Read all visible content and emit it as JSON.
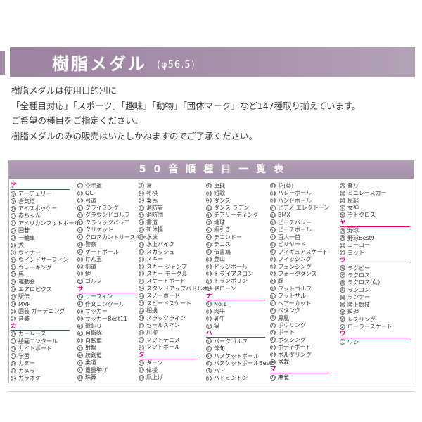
{
  "header": {
    "title": "樹脂メダル",
    "size_label": "(φ56.5)"
  },
  "intro": {
    "lines": [
      "樹脂メダルは使用目的別に",
      "「全種目対応」「スポーツ」「趣味」「動物」「団体マーク」など147種取り揃えています。",
      "ご希望の種目をご指定ください。",
      "樹脂メダルのみの販売はいたしかねますのでご了承ください。"
    ]
  },
  "colors": {
    "accent_purple": "#a28aa6",
    "table_header_purple": "#a995ac",
    "section_pink": "#e5007f"
  },
  "table": {
    "title": "50音順種目一覧表",
    "columns": [
      [
        {
          "s": "ア"
        },
        {
          "n": 8,
          "t": "アーチェリー"
        },
        {
          "n": 9,
          "t": "合気道"
        },
        {
          "n": 10,
          "t": "アイスホッケー"
        },
        {
          "n": 23,
          "t": "赤ちゃん"
        },
        {
          "n": 11,
          "t": "アメリカンフットボール"
        },
        {
          "n": 24,
          "t": "囲碁"
        },
        {
          "n": 25,
          "t": "一輪車"
        },
        {
          "n": 26,
          "t": "犬"
        },
        {
          "n": 1,
          "t": "ウィナー"
        },
        {
          "n": 12,
          "t": "ウインドサーフィン"
        },
        {
          "n": 13,
          "t": "ウォーキング"
        },
        {
          "n": 27,
          "t": "馬"
        },
        {
          "n": 30,
          "t": "運動会"
        },
        {
          "n": 14,
          "t": "エアロビクス"
        },
        {
          "n": 15,
          "t": "駅伝"
        },
        {
          "n": 16,
          "t": "MVP"
        },
        {
          "n": 28,
          "t": "園芸 ガーデニング"
        },
        {
          "n": 29,
          "t": "音楽"
        },
        {
          "s": "カ"
        },
        {
          "n": 15,
          "t": "カーレース"
        },
        {
          "n": 31,
          "t": "絵画コンクール"
        },
        {
          "n": 36,
          "t": "カイトボード"
        },
        {
          "n": 32,
          "t": "学習"
        },
        {
          "n": 16,
          "t": "カヌー"
        },
        {
          "n": 33,
          "t": "カメラ"
        },
        {
          "n": 34,
          "t": "カラオケ"
        }
      ],
      [
        {
          "n": 17,
          "t": "空手道"
        },
        {
          "n": 18,
          "t": "QC"
        },
        {
          "n": 19,
          "t": "弓道"
        },
        {
          "n": 37,
          "t": "クライミング"
        },
        {
          "n": 20,
          "t": "グラウンドゴルフ"
        },
        {
          "n": 47,
          "t": "クラシックバレエ"
        },
        {
          "n": 38,
          "t": "クリケット"
        },
        {
          "n": 33,
          "t": "クロスカントリースキー"
        },
        {
          "n": 35,
          "t": "警察"
        },
        {
          "n": 21,
          "t": "ゲートボール"
        },
        {
          "n": 39,
          "t": "けん玉"
        },
        {
          "n": 22,
          "t": "剣道"
        },
        {
          "n": 40,
          "t": "鯉"
        },
        {
          "n": 23,
          "t": "ゴルフ"
        },
        {
          "s": "サ"
        },
        {
          "n": 24,
          "t": "サーフィン"
        },
        {
          "n": 41,
          "t": "作文コンクール"
        },
        {
          "n": 25,
          "t": "サッカー"
        },
        {
          "n": 26,
          "t": "サッカーBest11"
        },
        {
          "n": 42,
          "t": "磯釣り"
        },
        {
          "n": 43,
          "t": "自衛隊"
        },
        {
          "n": 28,
          "t": "自転車"
        },
        {
          "n": 29,
          "t": "射撃"
        },
        {
          "n": 44,
          "t": "銃剣道"
        },
        {
          "n": 30,
          "t": "柔道"
        },
        {
          "n": 31,
          "t": "重量挙げ"
        },
        {
          "n": 45,
          "t": "珠算"
        }
      ],
      [
        {
          "n": 2,
          "t": "賞"
        },
        {
          "n": 46,
          "t": "将棋"
        },
        {
          "n": 34,
          "t": "乗馬"
        },
        {
          "n": 13,
          "t": "消防署"
        },
        {
          "n": 15,
          "t": "消防団"
        },
        {
          "n": 48,
          "t": "書道"
        },
        {
          "n": 49,
          "t": "新体操"
        },
        {
          "n": 32,
          "t": "水泳"
        },
        {
          "n": 50,
          "t": "水上バイク"
        },
        {
          "n": 51,
          "t": "スカッシュ"
        },
        {
          "n": 33,
          "t": "スキー"
        },
        {
          "n": 52,
          "t": "スキー ジャンプ"
        },
        {
          "n": 53,
          "t": "スキー モーグル"
        },
        {
          "n": 41,
          "t": "スケートボード"
        },
        {
          "n": 54,
          "t": "スタンドアップパドルボード"
        },
        {
          "n": 40,
          "t": "スノーボード"
        },
        {
          "n": 55,
          "t": "スピードスケート"
        },
        {
          "n": 44,
          "t": "相撲"
        },
        {
          "n": 56,
          "t": "スラックライン"
        },
        {
          "n": 57,
          "t": "セールスマン"
        },
        {
          "n": 58,
          "t": "川柳"
        },
        {
          "n": 42,
          "t": "ソフトテニス"
        },
        {
          "n": 43,
          "t": "ソフトボール"
        },
        {
          "s": "タ"
        },
        {
          "n": 59,
          "t": "ダーツ"
        },
        {
          "n": 45,
          "t": "体操"
        },
        {
          "n": 60,
          "t": "凧上げ"
        }
      ],
      [
        {
          "n": 47,
          "t": "卓球"
        },
        {
          "n": 61,
          "t": "短歌"
        },
        {
          "n": 48,
          "t": "ダンス"
        },
        {
          "n": 62,
          "t": "ダンス ラテン"
        },
        {
          "n": 49,
          "t": "チアリーディング"
        },
        {
          "n": 3,
          "t": "地球"
        },
        {
          "n": 50,
          "t": "綱引き"
        },
        {
          "n": 51,
          "t": "テコンドー"
        },
        {
          "n": 52,
          "t": "テニス"
        },
        {
          "n": 63,
          "t": "伝書鳩"
        },
        {
          "n": 53,
          "t": "登山"
        },
        {
          "n": 54,
          "t": "ドッジボール"
        },
        {
          "n": 55,
          "t": "トライアスロン"
        },
        {
          "n": 56,
          "t": "トランポリン"
        },
        {
          "n": 64,
          "t": "ドローン"
        },
        {
          "s": "ナ"
        },
        {
          "n": 65,
          "t": "No.1"
        },
        {
          "n": 66,
          "t": "肉牛"
        },
        {
          "n": 67,
          "t": "乳牛"
        },
        {
          "n": 68,
          "t": "猫"
        },
        {
          "s": "ハ"
        },
        {
          "n": 57,
          "t": "パークゴルフ"
        },
        {
          "n": 69,
          "t": "俳句"
        },
        {
          "n": 58,
          "t": "バスケットボール"
        },
        {
          "n": 59,
          "t": "バスケットボールBest5"
        },
        {
          "n": 4,
          "t": "ハト"
        },
        {
          "n": 60,
          "t": "バドミントン"
        }
      ],
      [
        {
          "n": 31,
          "t": "花(菊)"
        },
        {
          "n": 61,
          "t": "バレーボール"
        },
        {
          "n": 62,
          "t": "ハンドボール"
        },
        {
          "n": 70,
          "t": "ピアノ エレクトーン"
        },
        {
          "n": 27,
          "t": "BMX"
        },
        {
          "n": 63,
          "t": "ビーチバレー"
        },
        {
          "n": 64,
          "t": "ビーチボール"
        },
        {
          "n": 71,
          "t": "百人一首"
        },
        {
          "n": 65,
          "t": "ビリヤード"
        },
        {
          "n": 66,
          "t": "フィギュアスケート"
        },
        {
          "n": 72,
          "t": "フィッシング"
        },
        {
          "n": 67,
          "t": "フェンシング"
        },
        {
          "n": 73,
          "t": "フォークダンス"
        },
        {
          "n": 74,
          "t": "豚"
        },
        {
          "n": 68,
          "t": "フットゴルフ"
        },
        {
          "n": 69,
          "t": "フットサル"
        },
        {
          "n": 75,
          "t": "ヘアーカット"
        },
        {
          "n": 76,
          "t": "ペタンク"
        },
        {
          "n": 5,
          "t": "鳳凰"
        },
        {
          "n": 70,
          "t": "ボウリング"
        },
        {
          "n": 71,
          "t": "ボート"
        },
        {
          "n": 72,
          "t": "ボクシング"
        },
        {
          "n": 73,
          "t": "ボディボード"
        },
        {
          "n": 74,
          "t": "ボルダリング"
        },
        {
          "n": 77,
          "t": "盆栽"
        },
        {
          "s": "マ"
        },
        {
          "n": 78,
          "t": "麻雀"
        }
      ],
      [
        {
          "n": 79,
          "t": "祭り"
        },
        {
          "n": 80,
          "t": "ミニレースカー"
        },
        {
          "n": 81,
          "t": "民謡"
        },
        {
          "n": 6,
          "t": "女神"
        },
        {
          "n": 82,
          "t": "モトクロス"
        },
        {
          "s": "ヤ"
        },
        {
          "n": 75,
          "t": "野球"
        },
        {
          "n": 76,
          "t": "野球Best9"
        },
        {
          "n": 10,
          "t": "ヨーヨー"
        },
        {
          "n": 77,
          "t": "ヨット"
        },
        {
          "s": "ラ"
        },
        {
          "n": 84,
          "t": "ラグビー"
        },
        {
          "n": 85,
          "t": "ラクロス"
        },
        {
          "n": 86,
          "t": "ラクロス(女)"
        },
        {
          "n": 87,
          "t": "ラジコン"
        },
        {
          "n": 88,
          "t": "ランナー"
        },
        {
          "n": 89,
          "t": "陸上競技"
        },
        {
          "n": 90,
          "t": "料理"
        },
        {
          "n": 91,
          "t": "レスリング"
        },
        {
          "n": 92,
          "t": "ローラースケート"
        },
        {
          "s": "ワ"
        },
        {
          "n": 7,
          "t": "ワシ"
        }
      ]
    ]
  }
}
